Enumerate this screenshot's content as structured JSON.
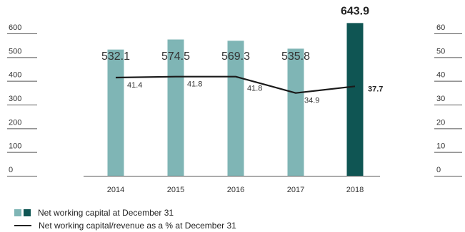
{
  "chart_data": {
    "type": "bar",
    "categories": [
      "2014",
      "2015",
      "2016",
      "2017",
      "2018"
    ],
    "series": [
      {
        "name": "Net working capital at December 31",
        "type": "bar",
        "axis": "left",
        "values": [
          532.1,
          574.5,
          569.3,
          535.8,
          643.9
        ],
        "labels": [
          "532.1",
          "574.5",
          "569.3",
          "535.8",
          "643.9"
        ]
      },
      {
        "name": "Net working capital/revenue as a % at December 31",
        "type": "line",
        "axis": "right",
        "values": [
          41.4,
          41.8,
          41.8,
          34.9,
          37.7
        ],
        "labels": [
          "41.4",
          "41.8",
          "41.8",
          "34.9",
          "37.7"
        ]
      }
    ],
    "left_axis": {
      "ticks": [
        "0",
        "100",
        "200",
        "300",
        "400",
        "500",
        "600"
      ],
      "ylim": [
        0,
        600
      ]
    },
    "right_axis": {
      "ticks": [
        "0",
        "10",
        "20",
        "30",
        "40",
        "50",
        "60"
      ],
      "ylim": [
        0,
        60
      ]
    },
    "highlight_index": 4,
    "colors": {
      "bar": "#7fb5b5",
      "bar_highlight": "#0f5553",
      "line": "#1a1a1a",
      "axis": "#555555"
    },
    "legend": {
      "position": "bottom-left",
      "items": [
        {
          "label": "Net working capital at December 31",
          "kind": "bar-pair"
        },
        {
          "label": "Net working capital/revenue as a % at December 31",
          "kind": "line"
        }
      ]
    }
  }
}
